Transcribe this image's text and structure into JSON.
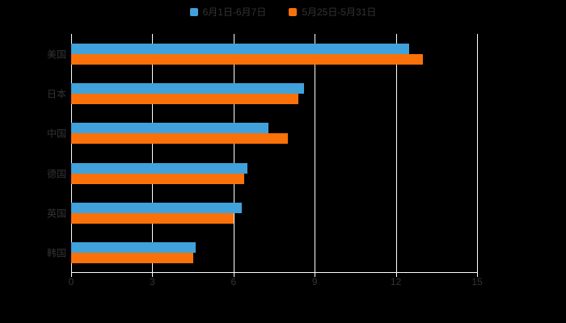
{
  "chart_data": {
    "type": "bar",
    "orientation": "horizontal",
    "title": "",
    "categories": [
      "美国",
      "日本",
      "中国",
      "德国",
      "英国",
      "韩国"
    ],
    "series": [
      {
        "name": "6月1日-6月7日",
        "color": "#41A1DA",
        "values": [
          12.5,
          8.6,
          7.3,
          6.5,
          6.3,
          4.6
        ]
      },
      {
        "name": "5月25日-5月31日",
        "color": "#FB7109",
        "values": [
          13.0,
          8.4,
          8.0,
          6.4,
          6.0,
          4.5
        ]
      }
    ],
    "xlim": [
      0,
      15
    ],
    "xticks": [
      0,
      3,
      6,
      9,
      12,
      15
    ],
    "grid": true,
    "legend_position": "top",
    "background": "#000000",
    "gridline_color": "#FFFFFF",
    "text_color": "#333333"
  }
}
